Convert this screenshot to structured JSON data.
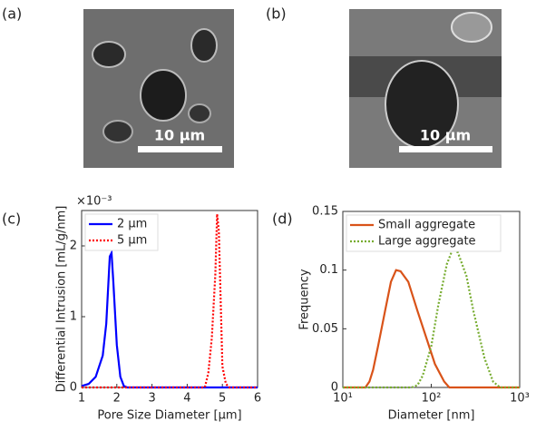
{
  "panels": {
    "labels": [
      "(a)",
      "(b)",
      "(c)",
      "(d)"
    ],
    "scale_bars": [
      "10 μm",
      "10 μm"
    ]
  },
  "chart_data": [
    {
      "type": "line",
      "x_label": "Pore Size Diameter [μm]",
      "y_label": "Differential Intrusion [mL/g/nm]",
      "y_multiplier": "×10⁻³",
      "xlim": [
        1,
        6
      ],
      "xticks": [
        1,
        2,
        3,
        4,
        5,
        6
      ],
      "ylim": [
        0,
        2.5
      ],
      "yticks": [
        0,
        1,
        2
      ],
      "legend": "upper left",
      "series": [
        {
          "name": "2 μm",
          "color": "#0000ff",
          "dash": "solid",
          "x": [
            1.0,
            1.2,
            1.4,
            1.6,
            1.7,
            1.8,
            1.85,
            1.9,
            2.0,
            2.1,
            2.2,
            2.3,
            6.0
          ],
          "values": [
            0.02,
            0.05,
            0.15,
            0.45,
            0.9,
            1.85,
            1.9,
            1.5,
            0.6,
            0.15,
            0.02,
            0,
            0
          ]
        },
        {
          "name": "5 μm",
          "color": "#ff0000",
          "dash": "dotted",
          "x": [
            1.0,
            4.5,
            4.6,
            4.7,
            4.8,
            4.85,
            4.9,
            5.0,
            5.1,
            5.2,
            6.0
          ],
          "values": [
            0,
            0,
            0.2,
            0.7,
            1.6,
            2.45,
            2.2,
            0.3,
            0.05,
            0,
            0
          ]
        }
      ]
    },
    {
      "type": "line",
      "x_label": "Diameter [nm]",
      "y_label": "Frequency",
      "xscale": "log",
      "xlim": [
        10,
        1000
      ],
      "xticks": [
        {
          "value": 10,
          "label": "10¹"
        },
        {
          "value": 100,
          "label": "10²"
        },
        {
          "value": 1000,
          "label": "10³"
        }
      ],
      "ylim": [
        0,
        0.15
      ],
      "yticks": [
        0,
        0.05,
        0.1,
        0.15
      ],
      "legend": "upper left",
      "series": [
        {
          "name": "Small aggregate",
          "color": "#d95319",
          "dash": "solid",
          "x": [
            10,
            18,
            20,
            22,
            25,
            30,
            35,
            40,
            45,
            55,
            70,
            90,
            110,
            140,
            160,
            1000
          ],
          "values": [
            0,
            0,
            0.005,
            0.015,
            0.035,
            0.065,
            0.09,
            0.1,
            0.099,
            0.09,
            0.065,
            0.04,
            0.02,
            0.005,
            0,
            0
          ]
        },
        {
          "name": "Large aggregate",
          "color": "#77ac30",
          "dash": "dotted",
          "x": [
            10,
            60,
            70,
            80,
            100,
            120,
            150,
            175,
            200,
            250,
            300,
            400,
            500,
            600,
            1000
          ],
          "values": [
            0,
            0,
            0.002,
            0.01,
            0.035,
            0.07,
            0.105,
            0.118,
            0.115,
            0.095,
            0.065,
            0.025,
            0.005,
            0,
            0
          ]
        }
      ]
    }
  ]
}
